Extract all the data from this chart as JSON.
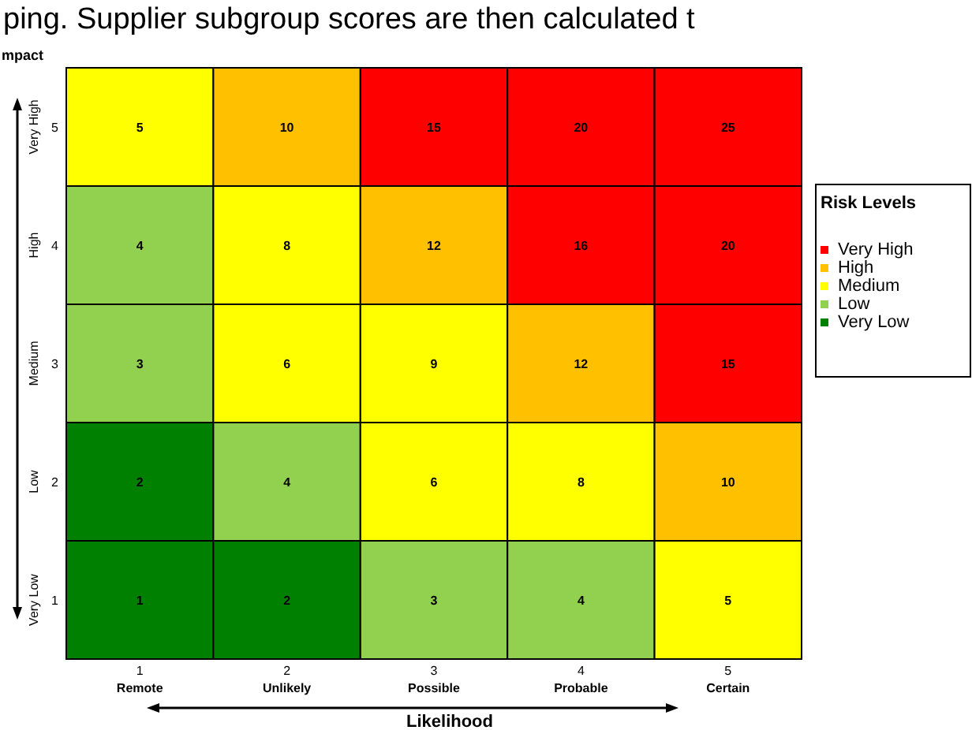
{
  "chart_data": {
    "type": "heatmap",
    "ylabel": "mpact",
    "xlabel": "Likelihood",
    "legend_title": "Risk Levels",
    "legend": "right",
    "annotations": [
      "ping. Supplier subgroup scores are then calculated t"
    ],
    "categories": [
      "1\nRemote",
      "2\nUnlikely",
      "3\nPossible",
      "4\nProbable",
      "5\nCertain"
    ],
    "y_categories": [
      "5",
      "4",
      "3",
      "2",
      "1"
    ],
    "y2_categories": [
      "Very High",
      "High",
      "Medium",
      "Low",
      "Very Low"
    ],
    "cells": [
      [
        5,
        10,
        15,
        20,
        25
      ],
      [
        4,
        8,
        12,
        16,
        20
      ],
      [
        3,
        6,
        9,
        12,
        15
      ],
      [
        2,
        4,
        6,
        8,
        10
      ],
      [
        1,
        2,
        3,
        4,
        5
      ]
    ],
    "colors": [
      [
        "#ffff00",
        "#ffc000",
        "#ff0000",
        "#ff0000",
        "#ff0000"
      ],
      [
        "#92d050",
        "#ffff00",
        "#ffc000",
        "#ff0000",
        "#ff0000"
      ],
      [
        "#92d050",
        "#ffff00",
        "#ffff00",
        "#ffc000",
        "#ff0000"
      ],
      [
        "#008000",
        "#92d050",
        "#ffff00",
        "#ffff00",
        "#ffc000"
      ],
      [
        "#008000",
        "#008000",
        "#92d050",
        "#92d050",
        "#ffff00"
      ]
    ],
    "data_labels": true,
    "series": [
      {
        "name": "Very High",
        "color": "#ff0000",
        "values": [
          null,
          null,
          null,
          null,
          null
        ]
      },
      {
        "name": "High",
        "color": "#ffc000",
        "values": [
          null,
          null,
          null,
          null,
          null
        ]
      },
      {
        "name": "Medium",
        "color": "#ffff00",
        "values": [
          null,
          null,
          null,
          null,
          null
        ]
      },
      {
        "name": "Low",
        "color": "#92d050",
        "values": [
          null,
          null,
          null,
          null,
          null
        ]
      },
      {
        "name": "Very Low",
        "color": "#008000",
        "values": [
          null,
          null,
          null,
          null,
          null
        ]
      }
    ]
  }
}
